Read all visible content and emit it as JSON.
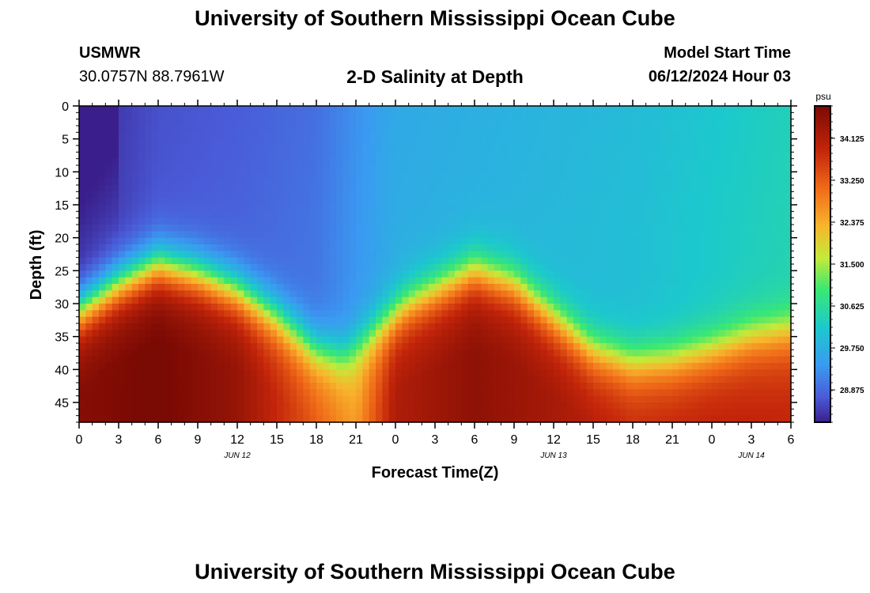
{
  "page": {
    "title_top": "University of Southern Mississippi Ocean Cube",
    "title_bottom": "University of Southern Mississippi Ocean Cube",
    "station_id": "USMWR",
    "station_coords": "30.0757N  88.7961W",
    "chart_title": "2-D Salinity at Depth",
    "model_label": "Model Start Time",
    "model_start": "06/12/2024 Hour 03"
  },
  "chart_data": {
    "type": "heatmap",
    "title": "2-D Salinity at Depth",
    "xlabel": "Forecast Time(Z)",
    "ylabel": "Depth (ft)",
    "colorbar_unit": "psu",
    "x_ticks": [
      "0",
      "3",
      "6",
      "9",
      "12",
      "15",
      "18",
      "21",
      "0",
      "3",
      "6",
      "9",
      "12",
      "15",
      "18",
      "21",
      "0",
      "3",
      "6"
    ],
    "x_range_hours": [
      0,
      54
    ],
    "date_labels": [
      {
        "label": "JUN 12",
        "at_hour": 12
      },
      {
        "label": "JUN 13",
        "at_hour": 36
      },
      {
        "label": "JUN 14",
        "at_hour": 51
      }
    ],
    "y_ticks": [
      "0",
      "5",
      "10",
      "15",
      "20",
      "25",
      "30",
      "35",
      "40",
      "45"
    ],
    "y_range_ft": [
      0,
      48
    ],
    "colorbar_ticks": [
      "34.125",
      "33.250",
      "32.375",
      "31.500",
      "30.625",
      "29.750",
      "28.875"
    ],
    "colorbar_range_psu": [
      28.2,
      34.8
    ],
    "halocline_depth_ft": [
      {
        "hour": 0,
        "depth": 31
      },
      {
        "hour": 3,
        "depth": 27
      },
      {
        "hour": 6,
        "depth": 24
      },
      {
        "hour": 9,
        "depth": 25.5
      },
      {
        "hour": 12,
        "depth": 28
      },
      {
        "hour": 15,
        "depth": 32
      },
      {
        "hour": 18,
        "depth": 37
      },
      {
        "hour": 20,
        "depth": 38
      },
      {
        "hour": 22,
        "depth": 35
      },
      {
        "hour": 25,
        "depth": 30
      },
      {
        "hour": 28,
        "depth": 27
      },
      {
        "hour": 30,
        "depth": 25
      },
      {
        "hour": 33,
        "depth": 27
      },
      {
        "hour": 36,
        "depth": 32
      },
      {
        "hour": 39,
        "depth": 37
      },
      {
        "hour": 42,
        "depth": 39
      },
      {
        "hour": 45,
        "depth": 38.5
      },
      {
        "hour": 48,
        "depth": 37
      },
      {
        "hour": 51,
        "depth": 35
      },
      {
        "hour": 54,
        "depth": 34
      }
    ],
    "surface_salinity_psu": [
      {
        "hour": 0,
        "psu": 28.3
      },
      {
        "hour": 6,
        "psu": 28.7
      },
      {
        "hour": 12,
        "psu": 28.8
      },
      {
        "hour": 18,
        "psu": 29.0
      },
      {
        "hour": 24,
        "psu": 29.7
      },
      {
        "hour": 30,
        "psu": 29.8
      },
      {
        "hour": 36,
        "psu": 29.9
      },
      {
        "hour": 42,
        "psu": 30.0
      },
      {
        "hour": 48,
        "psu": 30.2
      },
      {
        "hour": 54,
        "psu": 30.4
      }
    ],
    "bottom_salinity_psu": [
      {
        "hour": 0,
        "psu": 34.4
      },
      {
        "hour": 6,
        "psu": 34.6
      },
      {
        "hour": 12,
        "psu": 34.2
      },
      {
        "hour": 18,
        "psu": 33.0
      },
      {
        "hour": 21,
        "psu": 32.3
      },
      {
        "hour": 24,
        "psu": 33.9
      },
      {
        "hour": 30,
        "psu": 34.3
      },
      {
        "hour": 36,
        "psu": 34.0
      },
      {
        "hour": 42,
        "psu": 33.6
      },
      {
        "hour": 48,
        "psu": 33.7
      },
      {
        "hour": 54,
        "psu": 33.6
      }
    ]
  }
}
